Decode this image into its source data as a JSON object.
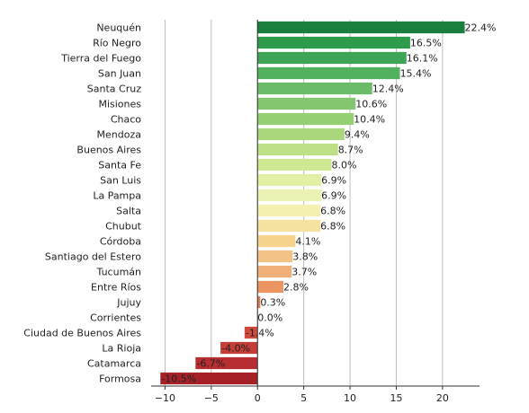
{
  "chart_data": {
    "type": "bar",
    "orientation": "horizontal",
    "title": "",
    "xlabel": "",
    "ylabel": "",
    "xlim": [
      -11.5,
      24
    ],
    "xticks": [
      -10,
      -5,
      0,
      5,
      10,
      15,
      20
    ],
    "xtick_labels": [
      "−10",
      "−5",
      "0",
      "5",
      "10",
      "15",
      "20"
    ],
    "grid": "vertical",
    "categories": [
      "Neuquén",
      "Río Negro",
      "Tierra del Fuego",
      "San Juan",
      "Santa Cruz",
      "Misiones",
      "Chaco",
      "Mendoza",
      "Buenos Aires",
      "Santa Fe",
      "San Luis",
      "La Pampa",
      "Salta",
      "Chubut",
      "Córdoba",
      "Santiago del Estero",
      "Tucumán",
      "Entre Ríos",
      "Jujuy",
      "Corrientes",
      "Ciudad de Buenos Aires",
      "La Rioja",
      "Catamarca",
      "Formosa"
    ],
    "values": [
      22.4,
      16.5,
      16.1,
      15.4,
      12.4,
      10.6,
      10.4,
      9.4,
      8.7,
      8.0,
      6.9,
      6.9,
      6.8,
      6.8,
      4.1,
      3.8,
      3.7,
      2.8,
      0.3,
      0.0,
      -1.4,
      -4.0,
      -6.7,
      -10.5
    ],
    "value_labels": [
      "22.4%",
      "16.5%",
      "16.1%",
      "15.4%",
      "12.4%",
      "10.6%",
      "10.4%",
      "9.4%",
      "8.7%",
      "8.0%",
      "6.9%",
      "6.9%",
      "6.8%",
      "6.8%",
      "4.1%",
      "3.8%",
      "3.7%",
      "2.8%",
      "0.3%",
      "0.0%",
      "-1.4%",
      "-4.0%",
      "-6.7%",
      "-10.5%"
    ],
    "colors": [
      "#1a7f3c",
      "#2e9a4c",
      "#3ea556",
      "#52b15e",
      "#6abc68",
      "#83c66f",
      "#95cf74",
      "#aad77c",
      "#bde086",
      "#cfe893",
      "#e2f0a6",
      "#ebf2b3",
      "#f3f0b0",
      "#f5e2a0",
      "#f6d48e",
      "#f3c285",
      "#f1b07a",
      "#ec9563",
      "#e47b52",
      "#dc6248",
      "#cf4b3e",
      "#c43d37",
      "#b72d31",
      "#a52127"
    ]
  }
}
